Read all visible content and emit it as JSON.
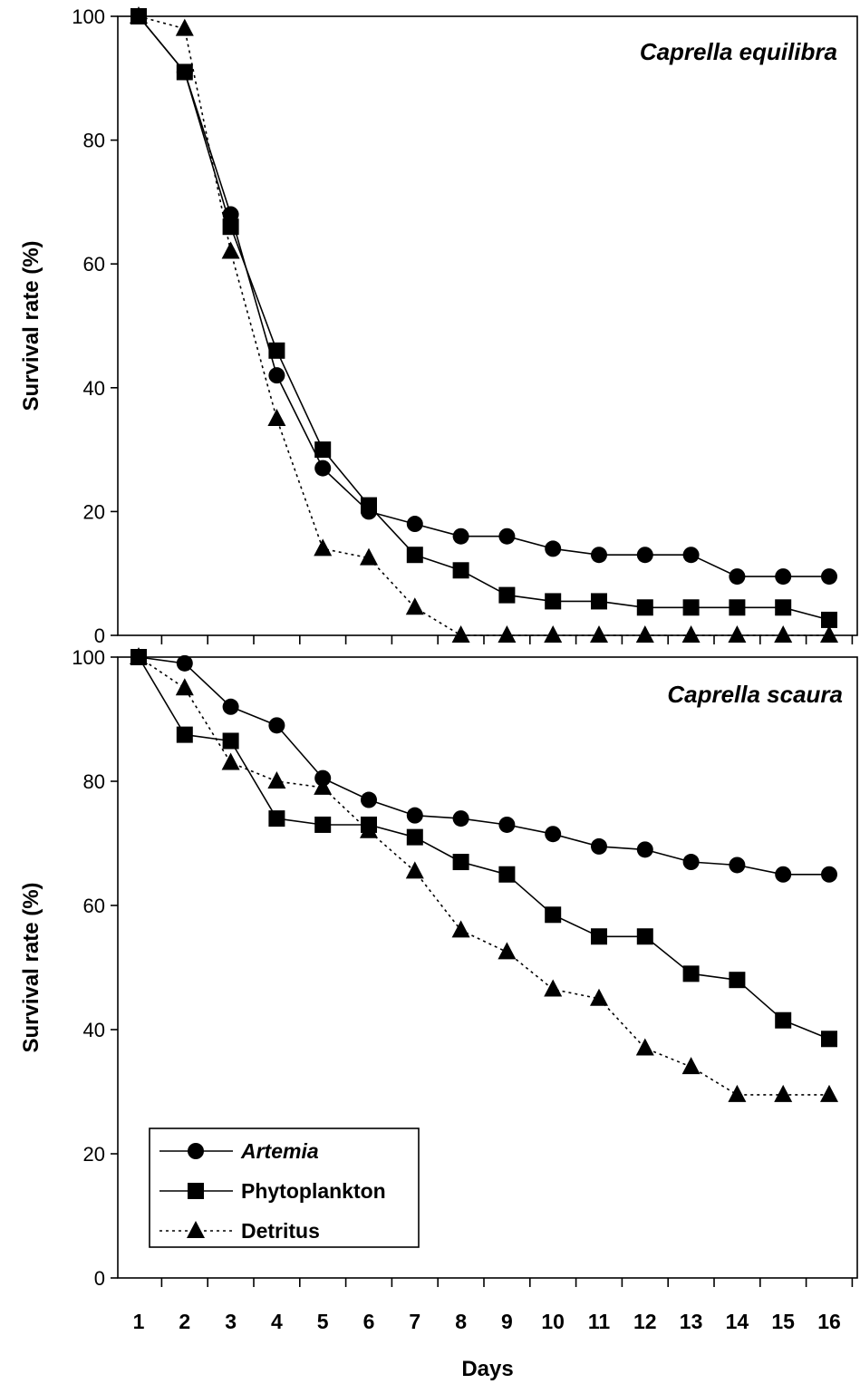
{
  "chart_data": [
    {
      "type": "line",
      "title": "Caprella equilibra",
      "ylabel": "Survival rate (%)",
      "xlabel": "",
      "ylim": [
        0,
        100
      ],
      "yticks": [
        "0",
        "20",
        "40",
        "60",
        "80",
        "100"
      ],
      "x": [
        1,
        2,
        3,
        4,
        5,
        6,
        7,
        8,
        9,
        10,
        11,
        12,
        13,
        14,
        15,
        16
      ],
      "series": [
        {
          "name": "Artemia",
          "marker": "circle",
          "dash": "solid",
          "values": [
            100,
            91,
            68,
            42,
            27,
            20,
            18,
            16,
            16,
            14,
            13,
            13,
            13,
            9.5,
            9.5,
            9.5
          ]
        },
        {
          "name": "Phytoplankton",
          "marker": "square",
          "dash": "solid",
          "values": [
            100,
            91,
            66,
            46,
            30,
            21,
            13,
            10.5,
            6.5,
            5.5,
            5.5,
            4.5,
            4.5,
            4.5,
            4.5,
            2.5
          ]
        },
        {
          "name": "Detritus",
          "marker": "triangle",
          "dash": "dotted",
          "values": [
            100,
            98,
            62,
            35,
            14,
            12.5,
            4.5,
            0,
            0,
            0,
            0,
            0,
            0,
            0,
            0,
            0
          ]
        }
      ]
    },
    {
      "type": "line",
      "title": "Caprella scaura",
      "ylabel": "Survival rate (%)",
      "xlabel": "Days",
      "ylim": [
        0,
        100
      ],
      "yticks": [
        "0",
        "20",
        "40",
        "60",
        "80",
        "100"
      ],
      "xticks": [
        "1",
        "2",
        "3",
        "4",
        "5",
        "6",
        "7",
        "8",
        "9",
        "10",
        "11",
        "12",
        "13",
        "14",
        "15",
        "16"
      ],
      "x": [
        1,
        2,
        3,
        4,
        5,
        6,
        7,
        8,
        9,
        10,
        11,
        12,
        13,
        14,
        15,
        16
      ],
      "series": [
        {
          "name": "Artemia",
          "marker": "circle",
          "dash": "solid",
          "values": [
            100,
            99,
            92,
            89,
            80.5,
            77,
            74.5,
            74,
            73,
            71.5,
            69.5,
            69,
            67,
            66.5,
            65,
            65
          ]
        },
        {
          "name": "Phytoplankton",
          "marker": "square",
          "dash": "solid",
          "values": [
            100,
            87.5,
            86.5,
            74,
            73,
            73,
            71,
            67,
            65,
            58.5,
            55,
            55,
            49,
            48,
            41.5,
            38.5
          ]
        },
        {
          "name": "Detritus",
          "marker": "triangle",
          "dash": "dotted",
          "values": [
            100,
            95,
            83,
            80,
            79,
            72,
            65.5,
            56,
            52.5,
            46.5,
            45,
            37,
            34,
            29.5,
            29.5,
            29.5
          ]
        }
      ],
      "legend": {
        "placement": "bottom-left",
        "entries": [
          {
            "label": "Artemia",
            "marker": "circle",
            "dash": "solid",
            "italic": true
          },
          {
            "label": "Phytoplankton",
            "marker": "square",
            "dash": "solid",
            "italic": false
          },
          {
            "label": "Detritus",
            "marker": "triangle",
            "dash": "dotted",
            "italic": false
          }
        ]
      }
    }
  ]
}
